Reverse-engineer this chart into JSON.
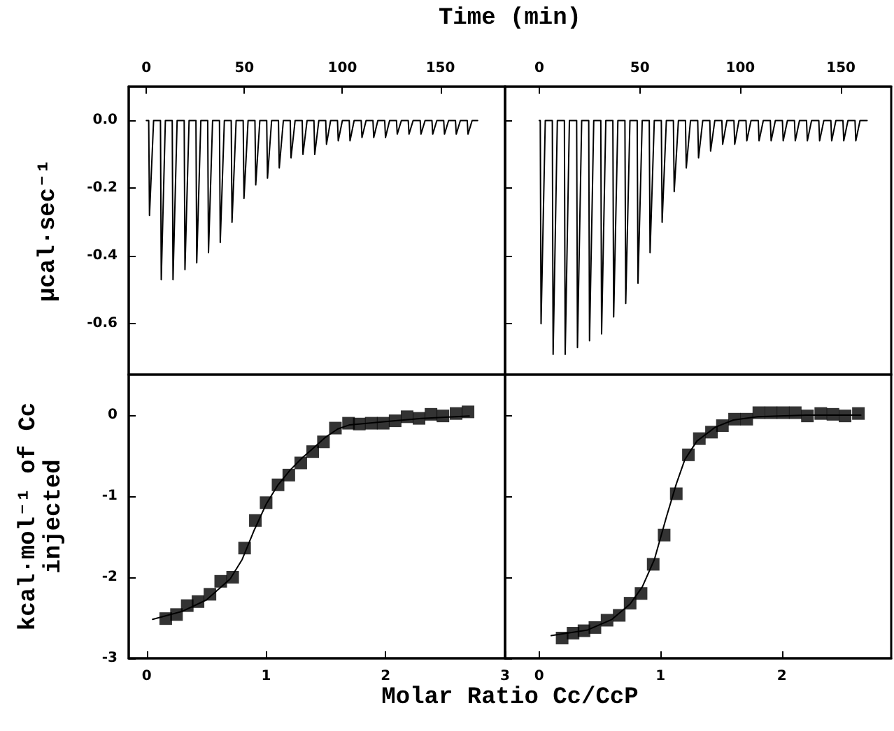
{
  "chart_data": [
    {
      "type": "line",
      "xlabel": "Time (min)",
      "ylabel": "μcal·sec⁻¹",
      "xlim": [
        -9,
        183
      ],
      "xticks": [
        0,
        50,
        100,
        150
      ],
      "ylim": [
        -0.75,
        0.1
      ],
      "yticks": [
        {
          "value": 0,
          "label": "0.0"
        },
        -0.2,
        -0.4,
        -0.6
      ],
      "marker": "none",
      "grid": false,
      "series": [
        {
          "color": "#000000",
          "x": [
            0,
            1.2,
            1.6,
            3.7,
            7.2,
            7.6,
            9.7,
            13.2,
            13.6,
            15.7,
            19.3,
            19.7,
            21.8,
            25.3,
            25.7,
            27.8,
            31.3,
            31.7,
            33.8,
            37.3,
            37.7,
            39.8,
            43.3,
            43.7,
            45.8,
            49.4,
            49.8,
            51.9,
            55.4,
            55.8,
            57.9,
            61.4,
            61.8,
            63.9,
            67.4,
            67.8,
            69.9,
            73.4,
            73.8,
            75.9,
            79.5,
            79.9,
            82.0,
            85.5,
            85.9,
            88.0,
            91.5,
            91.9,
            94.0,
            97.5,
            97.9,
            100.0,
            103.5,
            103.9,
            106.0,
            109.6,
            110.0,
            112.1,
            115.6,
            116.0,
            118.1,
            121.6,
            122.0,
            124.1,
            127.6,
            128.0,
            130.1,
            133.6,
            134.0,
            136.1,
            139.7,
            140.1,
            142.2,
            145.7,
            146.1,
            148.2,
            151.7,
            152.1,
            154.2,
            157.7,
            158.1,
            160.2,
            163.7,
            164.1,
            166.2,
            169
          ],
          "values": [
            0,
            0,
            -0.28,
            0,
            0,
            -0.47,
            0,
            0,
            -0.47,
            0,
            0,
            -0.44,
            0,
            0,
            -0.42,
            0,
            0,
            -0.39,
            0,
            0,
            -0.36,
            0,
            0,
            -0.3,
            0,
            0,
            -0.23,
            0,
            0,
            -0.19,
            0,
            0,
            -0.17,
            0,
            0,
            -0.14,
            0,
            0,
            -0.11,
            0,
            0,
            -0.1,
            0,
            0,
            -0.1,
            0,
            0,
            -0.07,
            0,
            0,
            -0.06,
            0,
            0,
            -0.06,
            0,
            0,
            -0.05,
            0,
            0,
            -0.05,
            0,
            0,
            -0.05,
            0,
            0,
            -0.04,
            0,
            0,
            -0.04,
            0,
            0,
            -0.04,
            0,
            0,
            -0.04,
            0,
            0,
            -0.04,
            0,
            0,
            -0.04,
            0,
            0,
            -0.04,
            0,
            0
          ]
        }
      ]
    },
    {
      "type": "line",
      "xlim": [
        -17,
        175
      ],
      "xticks": [
        0,
        50,
        100,
        150
      ],
      "ylim": [
        -0.75,
        0.1
      ],
      "yticks": [
        0,
        -0.2,
        -0.4,
        -0.6
      ],
      "tick_labels": "x",
      "marker": "none",
      "grid": false,
      "series": [
        {
          "color": "#000000",
          "x": [
            0,
            0.5,
            0.9,
            3.0,
            6.5,
            6.9,
            9.0,
            12.5,
            12.9,
            15.0,
            18.6,
            19.0,
            21.1,
            24.6,
            25.0,
            27.1,
            30.6,
            31.0,
            33.1,
            36.6,
            37.0,
            39.1,
            42.6,
            43.0,
            45.1,
            48.7,
            49.1,
            51.2,
            54.7,
            55.1,
            57.2,
            60.7,
            61.1,
            63.2,
            66.7,
            67.1,
            69.2,
            72.7,
            73.1,
            75.2,
            78.8,
            79.2,
            81.3,
            84.8,
            85.2,
            87.3,
            90.8,
            91.2,
            93.3,
            96.8,
            97.2,
            99.3,
            102.8,
            103.2,
            105.3,
            108.9,
            109.3,
            111.4,
            114.9,
            115.3,
            117.4,
            120.9,
            121.3,
            123.4,
            126.9,
            127.3,
            129.4,
            132.9,
            133.3,
            135.4,
            139.0,
            139.4,
            141.5,
            145.0,
            145.4,
            147.5,
            151.0,
            151.4,
            153.5,
            157.0,
            157.4,
            159.5,
            163
          ],
          "values": [
            0,
            0,
            -0.6,
            0,
            0,
            -0.69,
            0,
            0,
            -0.69,
            0,
            0,
            -0.67,
            0,
            0,
            -0.65,
            0,
            0,
            -0.63,
            0,
            0,
            -0.58,
            0,
            0,
            -0.54,
            0,
            0,
            -0.48,
            0,
            0,
            -0.39,
            0,
            0,
            -0.3,
            0,
            0,
            -0.21,
            0,
            0,
            -0.14,
            0,
            0,
            -0.11,
            0,
            0,
            -0.09,
            0,
            0,
            -0.07,
            0,
            0,
            -0.07,
            0,
            0,
            -0.06,
            0,
            0,
            -0.06,
            0,
            0,
            -0.06,
            0,
            0,
            -0.06,
            0,
            0,
            -0.06,
            0,
            0,
            -0.06,
            0,
            0,
            -0.06,
            0,
            0,
            -0.06,
            0,
            0,
            -0.06,
            0,
            0,
            -0.06,
            0,
            0
          ]
        }
      ]
    },
    {
      "type": "scatter",
      "xlabel": "Molar Ratio Cc/CcP",
      "ylabel": "kcal·mol⁻¹ of Cc\ninjected",
      "xlim": [
        -0.15,
        3
      ],
      "xticks": [
        0,
        1,
        2,
        3
      ],
      "ylim": [
        -3,
        0.5
      ],
      "yticks": [
        0,
        -1,
        -2,
        -3
      ],
      "marker": "square",
      "grid": false,
      "series": [
        {
          "color": "#000000",
          "x": [
            0.16,
            0.25,
            0.34,
            0.43,
            0.53,
            0.62,
            0.72,
            0.82,
            0.91,
            1.0,
            1.1,
            1.19,
            1.29,
            1.39,
            1.48,
            1.58,
            1.69,
            1.78,
            1.88,
            1.98,
            2.08,
            2.18,
            2.28,
            2.38,
            2.48,
            2.59,
            2.69
          ],
          "values": [
            -2.51,
            -2.46,
            -2.35,
            -2.3,
            -2.21,
            -2.05,
            -2.0,
            -1.64,
            -1.3,
            -1.08,
            -0.86,
            -0.74,
            -0.59,
            -0.45,
            -0.33,
            -0.16,
            -0.1,
            -0.11,
            -0.1,
            -0.1,
            -0.07,
            -0.02,
            -0.04,
            0.01,
            -0.01,
            0.02,
            0.04
          ]
        },
        {
          "type": "line",
          "marker": "none",
          "color": "#000000",
          "x": [
            0.05,
            0.3,
            0.5,
            0.7,
            0.8,
            0.9,
            1.0,
            1.1,
            1.2,
            1.3,
            1.4,
            1.5,
            1.6,
            1.7,
            2.0,
            2.3,
            2.7
          ],
          "values": [
            -2.52,
            -2.42,
            -2.28,
            -2.02,
            -1.78,
            -1.42,
            -1.1,
            -0.86,
            -0.68,
            -0.53,
            -0.4,
            -0.27,
            -0.17,
            -0.12,
            -0.08,
            -0.04,
            -0.01
          ]
        }
      ]
    },
    {
      "type": "scatter",
      "xlim": [
        -0.28,
        2.9
      ],
      "xticks": [
        0,
        1,
        2
      ],
      "ylim": [
        -3,
        0.5
      ],
      "yticks": [
        0,
        -1,
        -2,
        -3
      ],
      "tick_labels": "x",
      "marker": "square",
      "grid": false,
      "series": [
        {
          "color": "#000000",
          "x": [
            0.19,
            0.28,
            0.37,
            0.46,
            0.56,
            0.66,
            0.75,
            0.84,
            0.94,
            1.03,
            1.13,
            1.23,
            1.32,
            1.42,
            1.51,
            1.61,
            1.71,
            1.81,
            1.91,
            2.01,
            2.11,
            2.21,
            2.32,
            2.42,
            2.52,
            2.63
          ],
          "values": [
            -2.75,
            -2.69,
            -2.66,
            -2.62,
            -2.53,
            -2.47,
            -2.32,
            -2.2,
            -1.84,
            -1.48,
            -0.97,
            -0.49,
            -0.29,
            -0.21,
            -0.13,
            -0.05,
            -0.05,
            0.03,
            0.03,
            0.03,
            0.03,
            -0.01,
            0.02,
            0.01,
            -0.01,
            0.02
          ]
        },
        {
          "type": "line",
          "marker": "none",
          "color": "#000000",
          "x": [
            0.1,
            0.4,
            0.6,
            0.75,
            0.85,
            0.95,
            1.05,
            1.13,
            1.2,
            1.3,
            1.45,
            1.6,
            1.8,
            2.2,
            2.65
          ],
          "values": [
            -2.72,
            -2.65,
            -2.52,
            -2.33,
            -2.12,
            -1.78,
            -1.25,
            -0.85,
            -0.55,
            -0.32,
            -0.15,
            -0.06,
            -0.02,
            0.0,
            0.0
          ]
        }
      ]
    }
  ]
}
